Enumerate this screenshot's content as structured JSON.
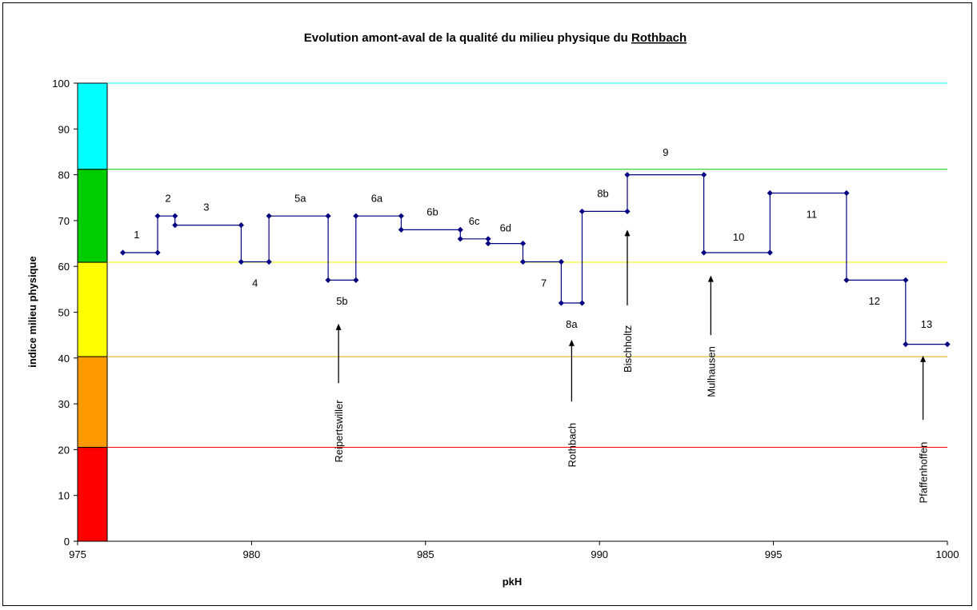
{
  "chart_data": {
    "type": "line",
    "title": "Evolution amont-aval de la qualité du milieu physique du Rothbach",
    "title_prefix": "Evolution amont-aval de la qualité du milieu physique du ",
    "title_underlined": "Rothbach",
    "xlabel": "pkH",
    "ylabel": "indice milieu physique",
    "xlim": [
      975,
      1000
    ],
    "ylim": [
      0,
      100
    ],
    "x_ticks": [
      "975",
      "980",
      "985",
      "990",
      "995",
      "1000"
    ],
    "y_ticks": [
      "0",
      "10",
      "20",
      "30",
      "40",
      "50",
      "60",
      "70",
      "80",
      "90",
      "100"
    ],
    "grid": false,
    "legend": "none",
    "line_color": "#000080",
    "quality_bands": [
      {
        "from": 0,
        "to": 20.5,
        "color": "#ff0000"
      },
      {
        "from": 20.5,
        "to": 40.3,
        "color": "#ff9900"
      },
      {
        "from": 40.3,
        "to": 60.9,
        "color": "#ffff00"
      },
      {
        "from": 60.9,
        "to": 81.2,
        "color": "#00cc00"
      },
      {
        "from": 81.2,
        "to": 100,
        "color": "#00ffff"
      }
    ],
    "threshold_lines": [
      {
        "y": 20.5,
        "color": "#ff0000"
      },
      {
        "y": 40.3,
        "color": "#ddaa00"
      },
      {
        "y": 60.9,
        "color": "#eeee00"
      },
      {
        "y": 81.2,
        "color": "#00cc00"
      },
      {
        "y": 100,
        "color": "#00ffff"
      }
    ],
    "points": [
      [
        976.3,
        63
      ],
      [
        977.3,
        63
      ],
      [
        977.3,
        71
      ],
      [
        977.8,
        71
      ],
      [
        977.8,
        69
      ],
      [
        979.7,
        69
      ],
      [
        979.7,
        61
      ],
      [
        980.5,
        61
      ],
      [
        980.5,
        71
      ],
      [
        982.2,
        71
      ],
      [
        982.2,
        57
      ],
      [
        983.0,
        57
      ],
      [
        983.0,
        71
      ],
      [
        984.3,
        71
      ],
      [
        984.3,
        68
      ],
      [
        986.0,
        68
      ],
      [
        986.0,
        66
      ],
      [
        986.8,
        66
      ],
      [
        986.8,
        65
      ],
      [
        987.8,
        65
      ],
      [
        987.8,
        61
      ],
      [
        988.9,
        61
      ],
      [
        988.9,
        52
      ],
      [
        989.5,
        52
      ],
      [
        989.5,
        72
      ],
      [
        990.8,
        72
      ],
      [
        990.8,
        80
      ],
      [
        993.0,
        80
      ],
      [
        993.0,
        63
      ],
      [
        994.9,
        63
      ],
      [
        994.9,
        76
      ],
      [
        997.1,
        76
      ],
      [
        997.1,
        57
      ],
      [
        998.8,
        57
      ],
      [
        998.8,
        43
      ],
      [
        1000.0,
        43
      ]
    ],
    "segment_labels": [
      {
        "text": "1",
        "x": 976.7,
        "y": 67
      },
      {
        "text": "2",
        "x": 977.6,
        "y": 75
      },
      {
        "text": "3",
        "x": 978.7,
        "y": 73
      },
      {
        "text": "4",
        "x": 980.1,
        "y": 56.5
      },
      {
        "text": "5a",
        "x": 981.4,
        "y": 75
      },
      {
        "text": "5b",
        "x": 982.6,
        "y": 52.5
      },
      {
        "text": "6a",
        "x": 983.6,
        "y": 75
      },
      {
        "text": "6b",
        "x": 985.2,
        "y": 72
      },
      {
        "text": "6c",
        "x": 986.4,
        "y": 70
      },
      {
        "text": "6d",
        "x": 987.3,
        "y": 68.5
      },
      {
        "text": "7",
        "x": 988.4,
        "y": 56.5
      },
      {
        "text": "8a",
        "x": 989.2,
        "y": 47.5
      },
      {
        "text": "8b",
        "x": 990.1,
        "y": 76
      },
      {
        "text": "9",
        "x": 991.9,
        "y": 85
      },
      {
        "text": "10",
        "x": 994.0,
        "y": 66.5
      },
      {
        "text": "11",
        "x": 996.1,
        "y": 71.5
      },
      {
        "text": "12",
        "x": 997.9,
        "y": 52.5
      },
      {
        "text": "13",
        "x": 999.4,
        "y": 47.5
      }
    ],
    "town_annotations": [
      {
        "name": "Reipertswiller",
        "x": 982.5,
        "arrow_from": 34.5,
        "arrow_to": 47.5,
        "label_center": 24
      },
      {
        "name": "Rothbach",
        "x": 989.2,
        "arrow_from": 30.5,
        "arrow_to": 44,
        "label_center": 21
      },
      {
        "name": "Bischholtz",
        "x": 990.8,
        "arrow_from": 51.5,
        "arrow_to": 68,
        "label_center": 42
      },
      {
        "name": "Mulhausen",
        "x": 993.2,
        "arrow_from": 45,
        "arrow_to": 58,
        "label_center": 37
      },
      {
        "name": "Pfaffenhoffen",
        "x": 999.3,
        "arrow_from": 26.5,
        "arrow_to": 40.5,
        "label_center": 15
      }
    ]
  }
}
